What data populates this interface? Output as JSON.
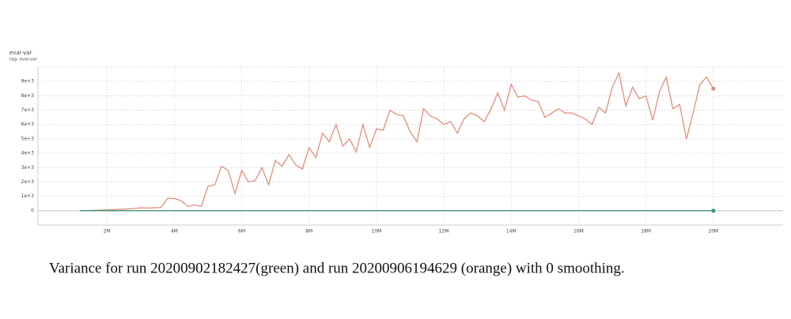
{
  "chart_data": {
    "type": "line",
    "title": "eval-var",
    "subtitle": "tag: eval-var",
    "caption": "Variance for run 20200902182427(green) and  run 20200906194629 (orange) with 0 smoothing.",
    "x": [
      1200000,
      1400000,
      1600000,
      1800000,
      2000000,
      2200000,
      2400000,
      2600000,
      2800000,
      3000000,
      3200000,
      3400000,
      3600000,
      3800000,
      4000000,
      4200000,
      4400000,
      4600000,
      4800000,
      5000000,
      5200000,
      5400000,
      5600000,
      5800000,
      6000000,
      6200000,
      6400000,
      6600000,
      6800000,
      7000000,
      7200000,
      7400000,
      7600000,
      7800000,
      8000000,
      8200000,
      8400000,
      8600000,
      8800000,
      9000000,
      9200000,
      9400000,
      9600000,
      9800000,
      10000000,
      10200000,
      10400000,
      10600000,
      10800000,
      11000000,
      11200000,
      11400000,
      11600000,
      11800000,
      12000000,
      12200000,
      12400000,
      12600000,
      12800000,
      13000000,
      13200000,
      13400000,
      13600000,
      13800000,
      14000000,
      14200000,
      14400000,
      14600000,
      14800000,
      15000000,
      15200000,
      15400000,
      15600000,
      15800000,
      16000000,
      16200000,
      16400000,
      16600000,
      16800000,
      17000000,
      17200000,
      17400000,
      17600000,
      17800000,
      18000000,
      18200000,
      18400000,
      18600000,
      18800000,
      19000000,
      19200000,
      19400000,
      19600000,
      19800000,
      20000000
    ],
    "series": [
      {
        "name": "20200902182427",
        "color": "#3f8f7f",
        "values": [
          0,
          0,
          0,
          0,
          0,
          0,
          0,
          0,
          0,
          0,
          0,
          0,
          0,
          0,
          0,
          0,
          0,
          0,
          0,
          0,
          0,
          0,
          0,
          0,
          0,
          0,
          0,
          0,
          0,
          0,
          0,
          0,
          0,
          0,
          0,
          0,
          0,
          0,
          0,
          0,
          0,
          0,
          0,
          0,
          0,
          0,
          0,
          0,
          0,
          0,
          0,
          0,
          0,
          0,
          0,
          0,
          0,
          0,
          0,
          0,
          0,
          0,
          0,
          0,
          0,
          0,
          0,
          0,
          0,
          0,
          0,
          0,
          0,
          0,
          0,
          0,
          0,
          0,
          0,
          0,
          0,
          0,
          0,
          0,
          0,
          0,
          0,
          0,
          0,
          0,
          0,
          0,
          0,
          0,
          0
        ]
      },
      {
        "name": "20200906194629",
        "color": "#e0907a",
        "values": [
          0,
          0,
          20,
          40,
          60,
          80,
          100,
          120,
          150,
          200,
          180,
          200,
          220,
          850,
          850,
          700,
          300,
          400,
          300,
          1700,
          1800,
          3100,
          2800,
          1200,
          2800,
          2000,
          2100,
          3000,
          1800,
          3500,
          3100,
          3900,
          3200,
          2900,
          4400,
          3700,
          5400,
          4800,
          6000,
          4500,
          5000,
          4100,
          6000,
          4400,
          5700,
          5600,
          7000,
          6700,
          6600,
          5500,
          4800,
          7100,
          6600,
          6400,
          6000,
          6200,
          5400,
          6400,
          6800,
          6600,
          6200,
          7100,
          8200,
          7000,
          8800,
          7900,
          8000,
          7700,
          7600,
          6500,
          6800,
          7100,
          6800,
          6800,
          6600,
          6400,
          6000,
          7200,
          6800,
          8600,
          9600,
          7300,
          8600,
          7800,
          8000,
          6300,
          8300,
          9300,
          7100,
          7400,
          5000,
          6800,
          8800,
          9300,
          8500
        ]
      }
    ],
    "xlim": [
      0,
      22000000
    ],
    "xticks": [
      {
        "value": 2000000,
        "label": "2M"
      },
      {
        "value": 4000000,
        "label": "4M"
      },
      {
        "value": 6000000,
        "label": "6M"
      },
      {
        "value": 8000000,
        "label": "8M"
      },
      {
        "value": 10000000,
        "label": "10M"
      },
      {
        "value": 12000000,
        "label": "12M"
      },
      {
        "value": 14000000,
        "label": "14M"
      },
      {
        "value": 16000000,
        "label": "16M"
      },
      {
        "value": 18000000,
        "label": "18M"
      },
      {
        "value": 20000000,
        "label": "20M"
      }
    ],
    "ylim": [
      -1000,
      10000
    ],
    "yticks": [
      0,
      {
        "value": 1000,
        "label": "1e+3"
      },
      {
        "value": 2000,
        "label": "2e+3"
      },
      {
        "value": 3000,
        "label": "3e+3"
      },
      {
        "value": 4000,
        "label": "4e+3"
      },
      {
        "value": 5000,
        "label": "5e+3"
      },
      {
        "value": 6000,
        "label": "6e+3"
      },
      {
        "value": 7000,
        "label": "7e+3"
      },
      {
        "value": 8000,
        "label": "8e+3"
      },
      {
        "value": 9000,
        "label": "9e+3"
      }
    ],
    "grid": true
  }
}
